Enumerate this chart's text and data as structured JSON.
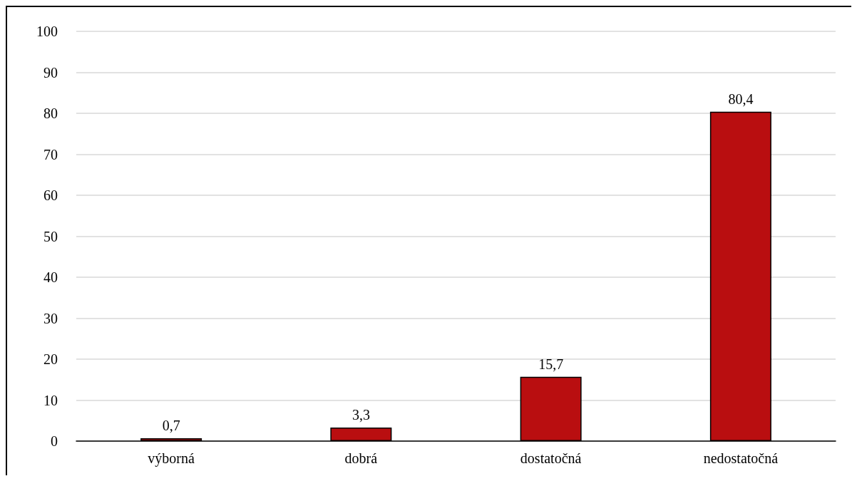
{
  "chart_data": {
    "type": "bar",
    "categories": [
      "výborná",
      "dobrá",
      "dostatočná",
      "nedostatočná"
    ],
    "values": [
      0.7,
      3.3,
      15.7,
      80.4
    ],
    "value_labels": [
      "0,7",
      "3,3",
      "15,7",
      "80,4"
    ],
    "color": "#b90e10",
    "ylim": [
      0,
      100
    ],
    "yticks": [
      0,
      10,
      20,
      30,
      40,
      50,
      60,
      70,
      80,
      90,
      100
    ],
    "grid": "y"
  }
}
